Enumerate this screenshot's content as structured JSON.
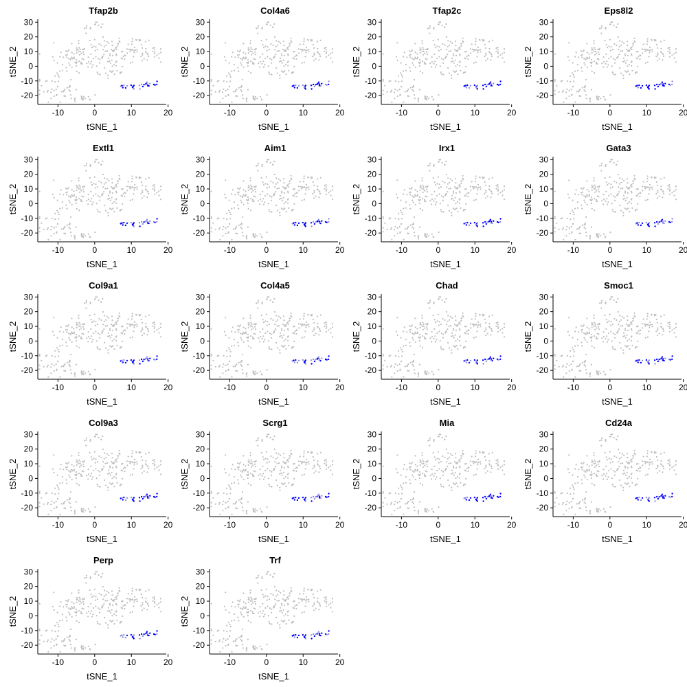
{
  "chart_data": {
    "type": "scatter",
    "xlabel": "tSNE_1",
    "ylabel": "tSNE_2",
    "xlim": [
      -15.5,
      19.5
    ],
    "ylim": [
      -26,
      32
    ],
    "x_ticks": [
      -10,
      0,
      10,
      20
    ],
    "x_tick_labels": [
      "-10",
      "0",
      "10",
      "20"
    ],
    "y_ticks": [
      30,
      20,
      10,
      0,
      -10,
      -20
    ],
    "y_tick_labels": [
      "30",
      "20",
      "10",
      "0",
      "-10",
      "-20"
    ],
    "grid": false,
    "colors": {
      "low_expression": "#bebebe",
      "high_expression": "#0000ff"
    },
    "panels": [
      {
        "title": "Tfap2b"
      },
      {
        "title": "Col4a6"
      },
      {
        "title": "Tfap2c"
      },
      {
        "title": "Eps8l2"
      },
      {
        "title": "Extl1"
      },
      {
        "title": "Aim1"
      },
      {
        "title": "Irx1"
      },
      {
        "title": "Gata3"
      },
      {
        "title": "Col9a1"
      },
      {
        "title": "Col4a5"
      },
      {
        "title": "Chad"
      },
      {
        "title": "Smoc1"
      },
      {
        "title": "Col9a3"
      },
      {
        "title": "Scrg1"
      },
      {
        "title": "Mia"
      },
      {
        "title": "Cd24a"
      },
      {
        "title": "Perp"
      },
      {
        "title": "Trf"
      }
    ],
    "point_clusters": [
      {
        "cx": 3,
        "cy": 8,
        "sx": 5.5,
        "sy": 7,
        "n": 90
      },
      {
        "cx": -6,
        "cy": 5,
        "sx": 3.5,
        "sy": 7,
        "n": 50
      },
      {
        "cx": 10,
        "cy": 12,
        "sx": 4.5,
        "sy": 4,
        "n": 45
      },
      {
        "cx": 16,
        "cy": 8,
        "sx": 2,
        "sy": 3,
        "n": 18
      },
      {
        "cx": 0,
        "cy": 27,
        "sx": 1.5,
        "sy": 2,
        "n": 14
      },
      {
        "cx": -11,
        "cy": -15,
        "sx": 2.5,
        "sy": 5,
        "n": 45
      },
      {
        "cx": -3,
        "cy": -22,
        "sx": 2,
        "sy": 2.5,
        "n": 16
      },
      {
        "cx": 5,
        "cy": -5,
        "sx": 2,
        "sy": 2,
        "n": 10
      }
    ],
    "expressing_cluster": {
      "cx": 12,
      "cy": -13,
      "sx": 3,
      "sy": 1,
      "n": 30,
      "x_range": [
        7,
        17
      ]
    }
  }
}
